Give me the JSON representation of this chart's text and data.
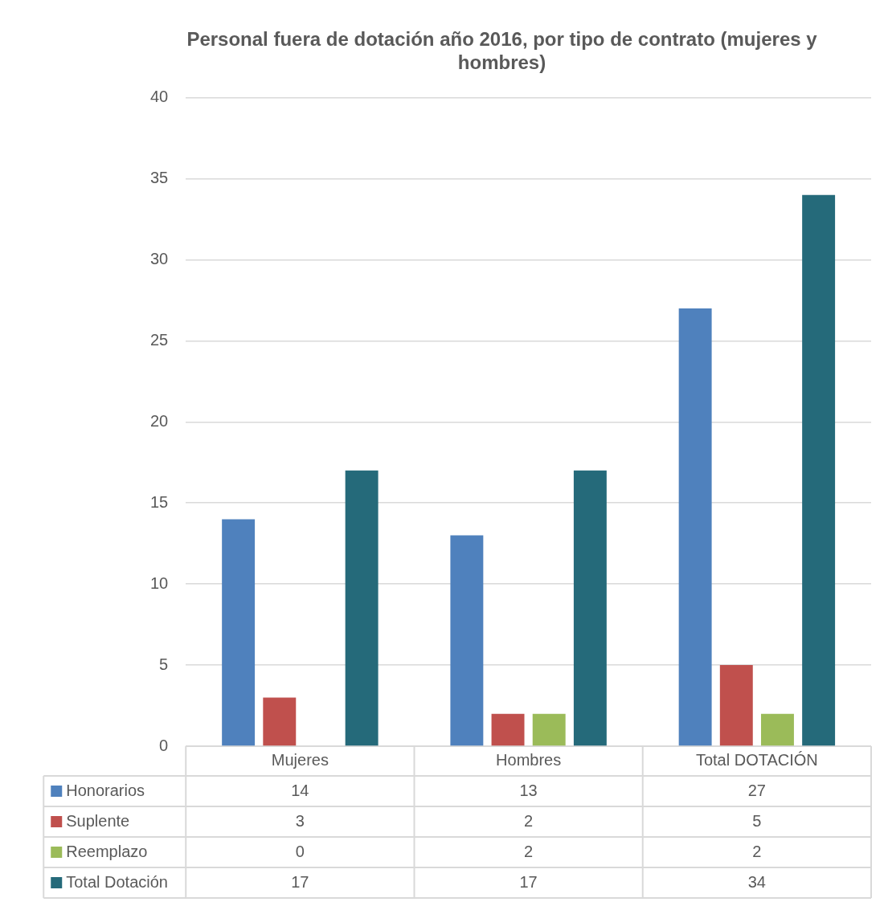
{
  "chart_data": {
    "type": "bar",
    "title": "Personal fuera de dotación año 2016, por tipo de contrato (mujeres y hombres)",
    "categories": [
      "Mujeres",
      "Hombres",
      "Total DOTACIÓN"
    ],
    "series": [
      {
        "name": "Honorarios",
        "color": "#4f81bd",
        "values": [
          14,
          13,
          27
        ]
      },
      {
        "name": "Suplente",
        "color": "#c0504d",
        "values": [
          3,
          2,
          5
        ]
      },
      {
        "name": "Reemplazo",
        "color": "#9bbb59",
        "values": [
          0,
          2,
          2
        ]
      },
      {
        "name": "Total Dotación",
        "color": "#256a7a",
        "values": [
          17,
          17,
          34
        ]
      }
    ],
    "ylim": [
      0,
      40
    ],
    "yticks": [
      0,
      5,
      10,
      15,
      20,
      25,
      30,
      35,
      40
    ],
    "grid": "y",
    "data_labels": true,
    "legend": "bottom left"
  }
}
